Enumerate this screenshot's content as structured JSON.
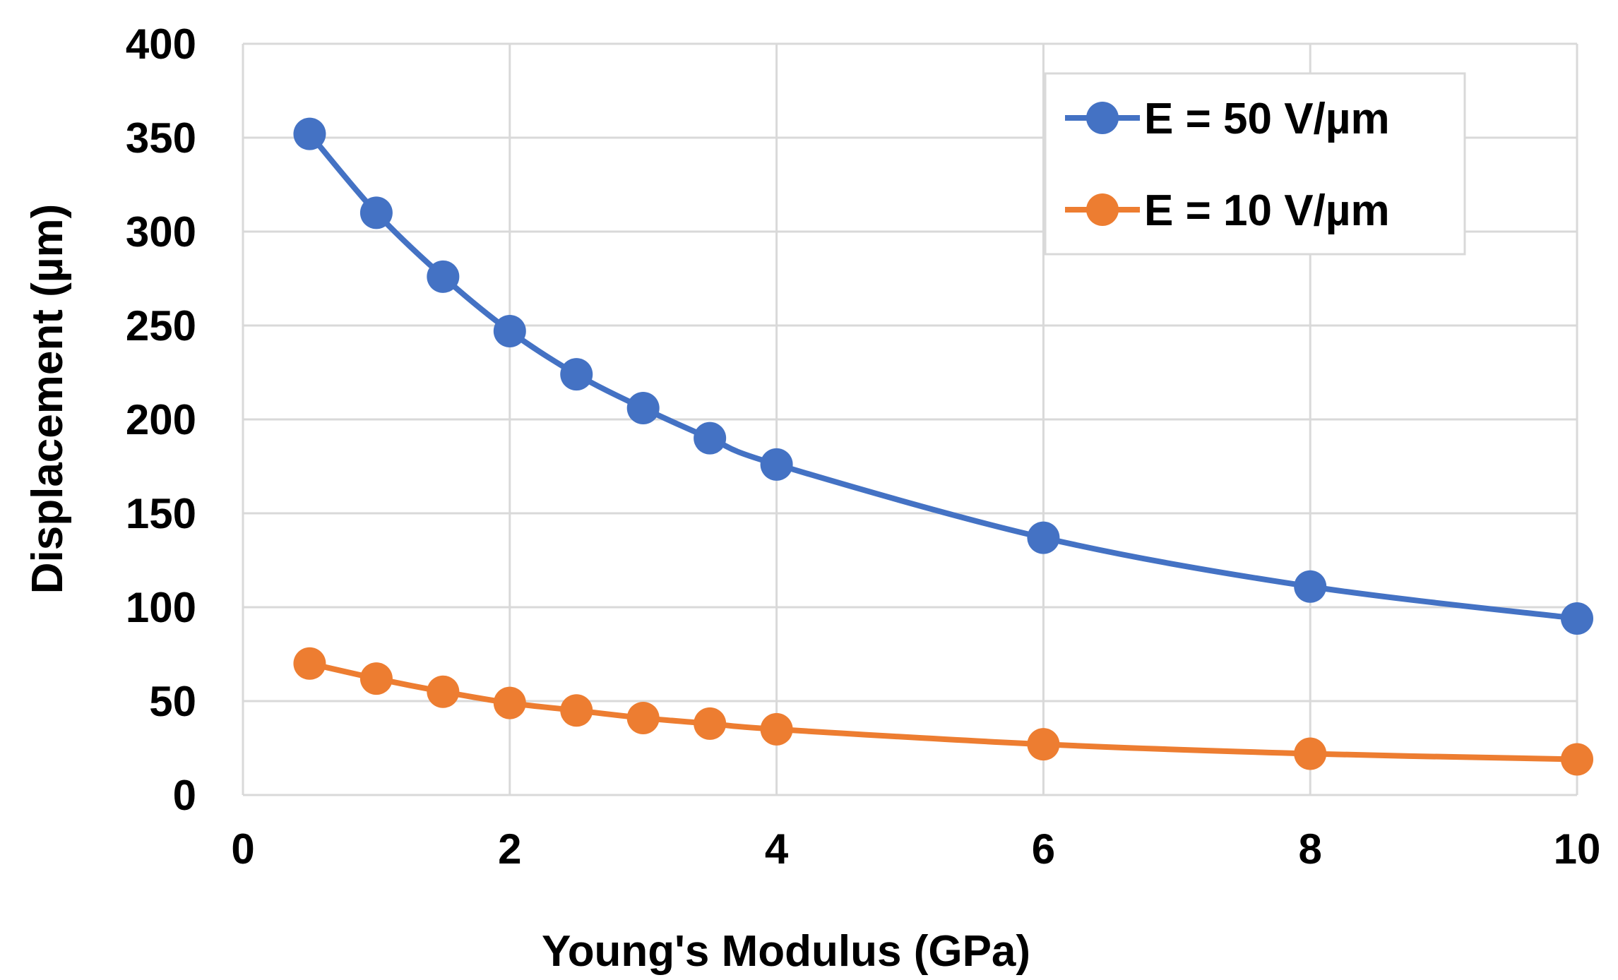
{
  "chart_data": {
    "type": "line",
    "title": "",
    "xlabel": "Young's Modulus (GPa)",
    "ylabel": "Displacement (µm)",
    "xlim": [
      0,
      10
    ],
    "ylim": [
      0,
      400
    ],
    "xticks": [
      0,
      2,
      4,
      6,
      8,
      10
    ],
    "yticks": [
      0,
      50,
      100,
      150,
      200,
      250,
      300,
      350,
      400
    ],
    "xtick_labels": [
      "0",
      "2",
      "4",
      "6",
      "8",
      "10"
    ],
    "ytick_labels": [
      "0",
      "50",
      "100",
      "150",
      "200",
      "250",
      "300",
      "350",
      "400"
    ],
    "grid": true,
    "legend_position": "top-right",
    "series": [
      {
        "name": "E = 50 V/µm",
        "color": "#4472C4",
        "x": [
          0.5,
          1,
          1.5,
          2,
          2.5,
          3,
          3.5,
          4,
          6,
          8,
          10
        ],
        "y": [
          352,
          310,
          276,
          247,
          224,
          206,
          190,
          176,
          137,
          111,
          94
        ]
      },
      {
        "name": "E = 10 V/µm",
        "color": "#ED7D31",
        "x": [
          0.5,
          1,
          1.5,
          2,
          2.5,
          3,
          3.5,
          4,
          6,
          8,
          10
        ],
        "y": [
          70,
          62,
          55,
          49,
          45,
          41,
          38,
          35,
          27,
          22,
          19
        ]
      }
    ]
  }
}
